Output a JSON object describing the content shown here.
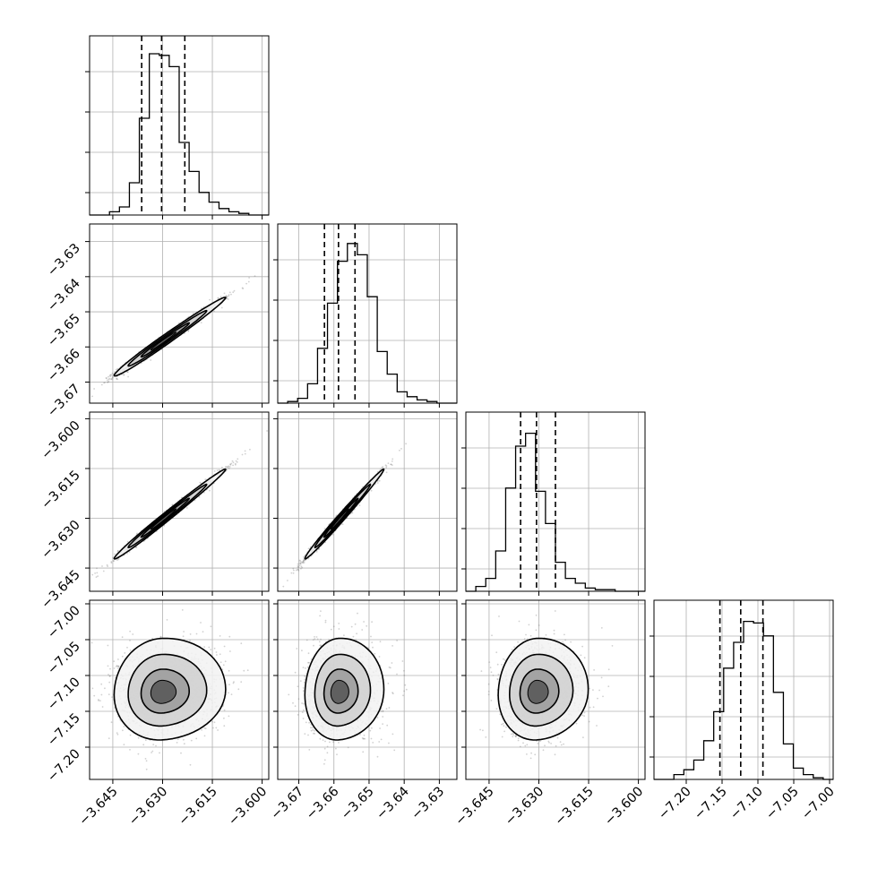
{
  "chart_data": {
    "type": "corner",
    "title": "",
    "grid": true,
    "quantile_lines": "dashed",
    "params": [
      {
        "name": "",
        "range": [
          -3.652,
          -3.598
        ],
        "ticks": [
          -3.645,
          -3.63,
          -3.615,
          -3.6
        ],
        "tick_labels": [
          "−3.645",
          "−3.630",
          "−3.615",
          "−3.600"
        ],
        "quantiles": [
          -3.6363,
          -3.6303,
          -3.6233
        ],
        "hist": [
          0,
          0,
          0.02,
          0.05,
          0.2,
          0.6,
          1.0,
          0.99,
          0.92,
          0.45,
          0.27,
          0.14,
          0.08,
          0.04,
          0.02,
          0.01,
          0,
          0
        ]
      },
      {
        "name": "",
        "range": [
          -3.676,
          -3.625
        ],
        "ticks": [
          -3.67,
          -3.66,
          -3.65,
          -3.64,
          -3.63
        ],
        "tick_labels": [
          "−3.67",
          "−3.66",
          "−3.65",
          "−3.64",
          "−3.63"
        ],
        "quantiles": [
          -3.6627,
          -3.6587,
          -3.654
        ],
        "hist": [
          0,
          0.01,
          0.03,
          0.12,
          0.34,
          0.62,
          0.88,
          0.99,
          0.92,
          0.66,
          0.32,
          0.18,
          0.07,
          0.04,
          0.02,
          0.01,
          0,
          0
        ]
      },
      {
        "name": "",
        "range": [
          -3.652,
          -3.598
        ],
        "ticks": [
          -3.645,
          -3.63,
          -3.615,
          -3.6
        ],
        "tick_labels": [
          "−3.645",
          "−3.630",
          "−3.615",
          "−3.600"
        ],
        "quantiles": [
          -3.6355,
          -3.6307,
          -3.625
        ],
        "hist": [
          0,
          0.03,
          0.08,
          0.25,
          0.64,
          0.9,
          0.98,
          0.62,
          0.42,
          0.18,
          0.08,
          0.05,
          0.02,
          0.01,
          0.01,
          0,
          0,
          0
        ]
      },
      {
        "name": "",
        "range": [
          -7.245,
          -6.995
        ],
        "ticks": [
          -7.2,
          -7.15,
          -7.1,
          -7.05,
          -7.0
        ],
        "tick_labels": [
          "−7.20",
          "−7.15",
          "−7.10",
          "−7.05",
          "−7.00"
        ],
        "quantiles": [
          -7.153,
          -7.124,
          -7.093
        ],
        "hist": [
          0,
          0,
          0.03,
          0.06,
          0.12,
          0.24,
          0.42,
          0.69,
          0.85,
          0.98,
          0.97,
          0.89,
          0.54,
          0.22,
          0.07,
          0.03,
          0.01,
          0
        ]
      }
    ],
    "pairs": [
      {
        "row": 1,
        "col": 0,
        "correlation": 0.985
      },
      {
        "row": 2,
        "col": 0,
        "correlation": 0.99
      },
      {
        "row": 2,
        "col": 1,
        "correlation": 0.99
      },
      {
        "row": 3,
        "col": 0,
        "correlation": 0.05
      },
      {
        "row": 3,
        "col": 1,
        "correlation": 0.05
      },
      {
        "row": 3,
        "col": 2,
        "correlation": 0.05
      }
    ],
    "colors": {
      "line": "#000000",
      "grid": "#b0b0b0",
      "points": "#7a7a7a"
    }
  }
}
